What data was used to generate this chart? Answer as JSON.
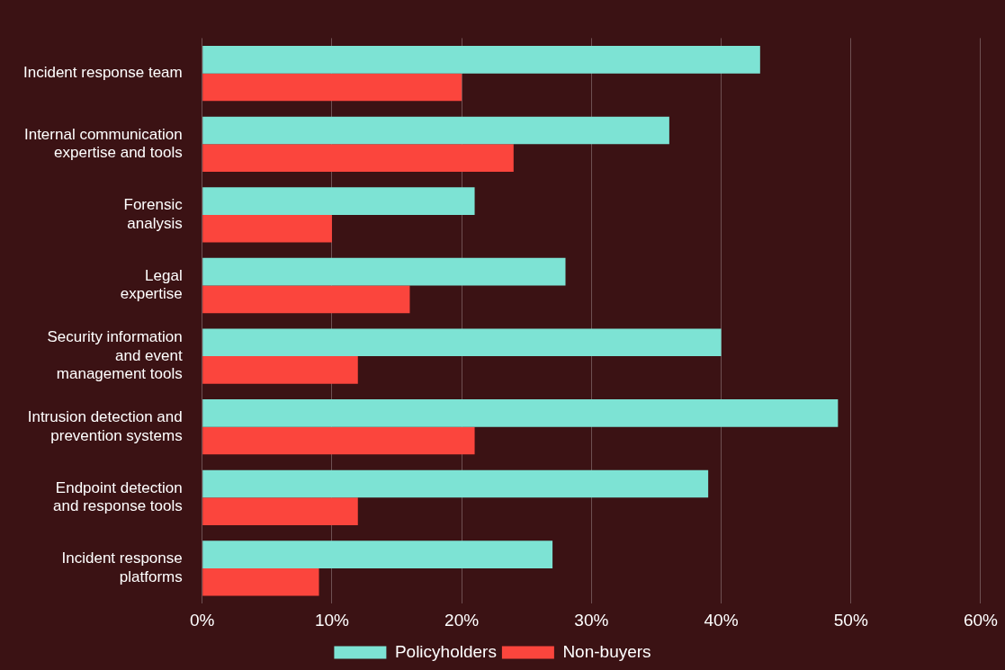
{
  "chart_data": {
    "type": "bar",
    "orientation": "horizontal",
    "categories": [
      "Incident response team",
      "Internal communication\nexpertise and tools",
      "Forensic\nanalysis",
      "Legal\nexpertise",
      "Security information\nand event\nmanagement tools",
      "Intrusion detection and\nprevention systems",
      "Endpoint detection\nand response tools",
      "Incident response\nplatforms"
    ],
    "series": [
      {
        "name": "Policyholders",
        "color": "#7de3d4",
        "values": [
          43,
          36,
          21,
          28,
          40,
          49,
          39,
          27
        ]
      },
      {
        "name": "Non-buyers",
        "color": "#fb453d",
        "values": [
          20,
          24,
          10,
          16,
          12,
          21,
          12,
          9
        ]
      }
    ],
    "xlim": [
      0,
      60
    ],
    "xticks": [
      {
        "value": 0,
        "label": "0%"
      },
      {
        "value": 10,
        "label": "10%"
      },
      {
        "value": 20,
        "label": "20%"
      },
      {
        "value": 30,
        "label": "30%"
      },
      {
        "value": 40,
        "label": "40%"
      },
      {
        "value": 50,
        "label": "50%"
      },
      {
        "value": 60,
        "label": "60%"
      }
    ],
    "grid": "x",
    "legend": "bottom"
  }
}
